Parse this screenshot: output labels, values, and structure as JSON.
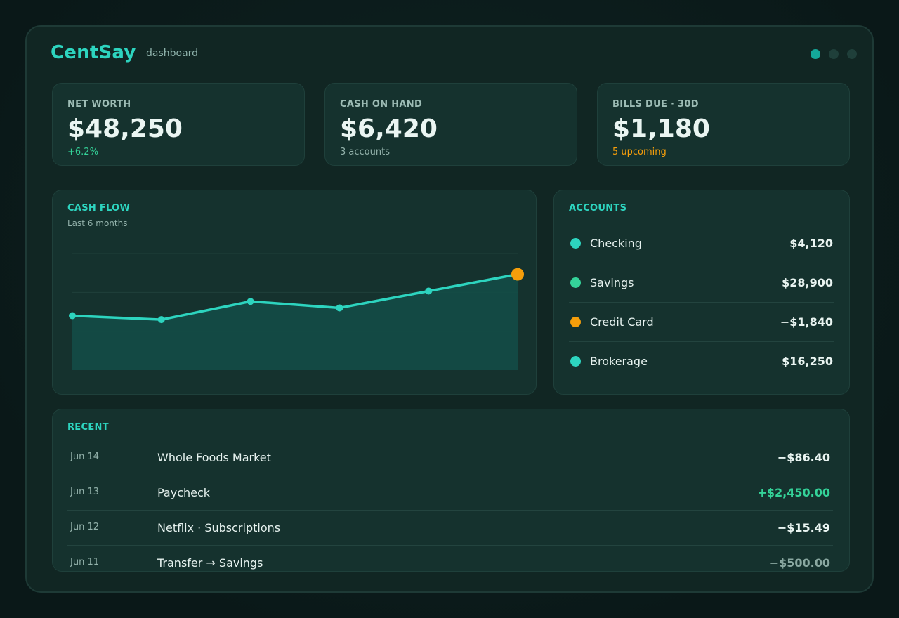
{
  "app": {
    "name": "CentSay",
    "subtitle": "dashboard"
  },
  "window_dots": [
    {
      "active": true
    },
    {
      "active": false
    },
    {
      "active": false
    }
  ],
  "stats": [
    {
      "label": "NET WORTH",
      "value": "$48,250",
      "note": "+6.2%",
      "tone": "pos"
    },
    {
      "label": "CASH ON HAND",
      "value": "$6,420",
      "note": "3 accounts",
      "tone": "muted"
    },
    {
      "label": "BILLS DUE · 30D",
      "value": "$1,180",
      "note": "5 upcoming",
      "tone": "warn"
    }
  ],
  "cashflow": {
    "title": "CASH FLOW",
    "subtitle": "Last 6 months"
  },
  "chart_data": {
    "type": "area",
    "title": "CASH FLOW",
    "subtitle": "Last 6 months",
    "x": [
      1,
      2,
      3,
      4,
      5,
      6
    ],
    "values": [
      4.2,
      3.9,
      5.3,
      4.8,
      6.1,
      7.4
    ],
    "ylim": [
      0,
      9
    ],
    "grid": true,
    "highlight_last": true,
    "colors": {
      "line": "#2dd4bf",
      "fill": "#134e48",
      "highlight": "#f59e0b"
    }
  },
  "accounts": {
    "title": "ACCOUNTS",
    "items": [
      {
        "name": "Checking",
        "amount": "$4,120",
        "color": "#2dd4bf"
      },
      {
        "name": "Savings",
        "amount": "$28,900",
        "color": "#34d399"
      },
      {
        "name": "Credit Card",
        "amount": "−$1,840",
        "color": "#f59e0b"
      },
      {
        "name": "Brokerage",
        "amount": "$16,250",
        "color": "#2dd4bf"
      }
    ]
  },
  "recent": {
    "title": "RECENT",
    "items": [
      {
        "date": "Jun 14",
        "description": "Whole Foods Market",
        "amount": "−$86.40",
        "tone": "neg"
      },
      {
        "date": "Jun 13",
        "description": "Paycheck",
        "amount": "+$2,450.00",
        "tone": "pos"
      },
      {
        "date": "Jun 12",
        "description": "Netflix · Subscriptions",
        "amount": "−$15.49",
        "tone": "neg"
      },
      {
        "date": "Jun 11",
        "description": "Transfer → Savings",
        "amount": "−$500.00",
        "tone": "muted"
      }
    ]
  }
}
